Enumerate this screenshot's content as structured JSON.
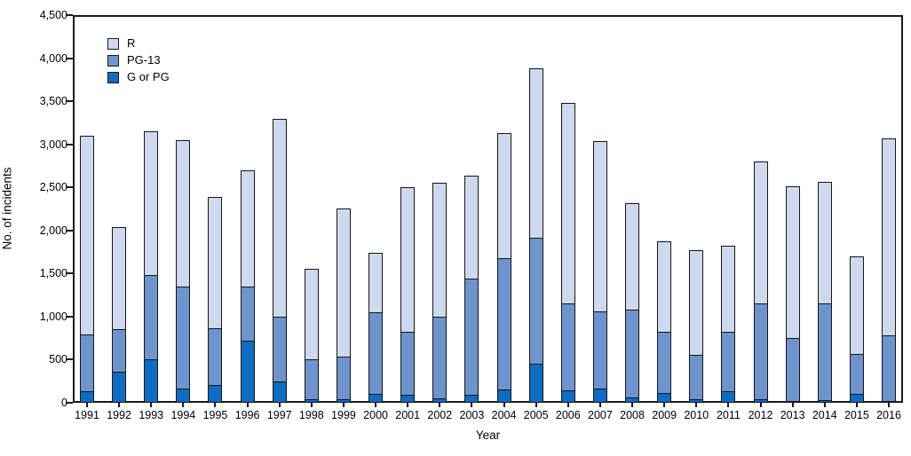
{
  "chart_data": {
    "type": "bar",
    "stacked": true,
    "title": "",
    "xlabel": "Year",
    "ylabel": "No. of incidents",
    "ylim": [
      0,
      4500
    ],
    "ytick_interval": 500,
    "ytick_labels": [
      "0",
      "500",
      "1,000",
      "1,500",
      "2,000",
      "2,500",
      "3,000",
      "3,500",
      "4,000",
      "4,500"
    ],
    "grid": false,
    "legend_position": "top-left inside plot area",
    "legend_order": [
      "R",
      "PG-13",
      "G or PG"
    ],
    "stack_order_bottom_to_top": [
      "G or PG",
      "PG-13",
      "R"
    ],
    "categories": [
      "1991",
      "1992",
      "1993",
      "1994",
      "1995",
      "1996",
      "1997",
      "1998",
      "1999",
      "2000",
      "2001",
      "2002",
      "2003",
      "2004",
      "2005",
      "2006",
      "2007",
      "2008",
      "2009",
      "2010",
      "2011",
      "2012",
      "2013",
      "2014",
      "2015",
      "2016"
    ],
    "series": [
      {
        "name": "R",
        "color": "#cfd9ed",
        "values": [
          2320,
          1190,
          1680,
          1710,
          1530,
          1360,
          2310,
          1060,
          1730,
          700,
          1690,
          1560,
          1210,
          1460,
          1970,
          2340,
          1990,
          1250,
          1070,
          1220,
          1010,
          1660,
          1770,
          1420,
          1140,
          2300
        ]
      },
      {
        "name": "PG-13",
        "color": "#6f93cd",
        "values": [
          670,
          510,
          990,
          1190,
          670,
          640,
          760,
          480,
          510,
          960,
          740,
          960,
          1360,
          1540,
          1480,
          1020,
          900,
          1030,
          720,
          530,
          700,
          1120,
          740,
          1130,
          480,
          770
        ]
      },
      {
        "name": "G or PG",
        "color": "#0f6cc2",
        "values": [
          130,
          360,
          500,
          170,
          210,
          720,
          250,
          40,
          40,
          100,
          90,
          50,
          90,
          150,
          450,
          140,
          170,
          60,
          110,
          40,
          130,
          40,
          20,
          30,
          100,
          20
        ]
      }
    ],
    "colors": {
      "axis": "#1a1a1a",
      "background": "#ffffff"
    }
  }
}
